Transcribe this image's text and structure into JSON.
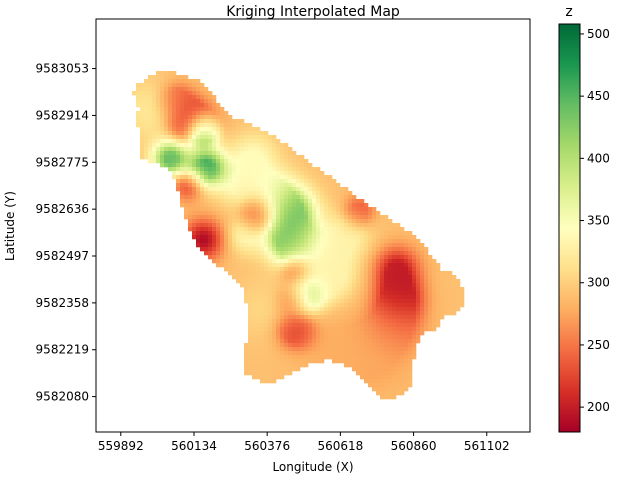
{
  "chart_data": {
    "type": "heatmap",
    "title": "Kriging Interpolated Map",
    "xlabel": "Longitude (X)",
    "ylabel": "Latitude  (Y)",
    "xlim": [
      559810,
      561245
    ],
    "ylim": [
      9581975,
      9583200
    ],
    "xticks": [
      559892,
      560134,
      560376,
      560618,
      560860,
      561102
    ],
    "yticks": [
      9583053,
      9582914,
      9582775,
      9582636,
      9582497,
      9582358,
      9582219,
      9582080
    ],
    "grid": false,
    "colorbar": {
      "label": "z",
      "colormap": "RdYlGn",
      "range": [
        180,
        508
      ],
      "ticks": [
        200,
        250,
        300,
        350,
        400,
        450,
        500
      ]
    },
    "default_value": 290,
    "region_outline": [
      [
        559990,
        9583030
      ],
      [
        560040,
        9583050
      ],
      [
        560150,
        9583020
      ],
      [
        560230,
        9582940
      ],
      [
        560260,
        9582910
      ],
      [
        560330,
        9582885
      ],
      [
        560420,
        9582840
      ],
      [
        560540,
        9582760
      ],
      [
        560620,
        9582710
      ],
      [
        560690,
        9582660
      ],
      [
        560780,
        9582610
      ],
      [
        560870,
        9582555
      ],
      [
        560950,
        9582460
      ],
      [
        561000,
        9582440
      ],
      [
        561025,
        9582390
      ],
      [
        561030,
        9582350
      ],
      [
        561000,
        9582330
      ],
      [
        560960,
        9582315
      ],
      [
        560935,
        9582275
      ],
      [
        560880,
        9582265
      ],
      [
        560860,
        9582180
      ],
      [
        560850,
        9582110
      ],
      [
        560795,
        9582070
      ],
      [
        560750,
        9582080
      ],
      [
        560680,
        9582140
      ],
      [
        560640,
        9582170
      ],
      [
        560580,
        9582190
      ],
      [
        560500,
        9582170
      ],
      [
        560440,
        9582140
      ],
      [
        560390,
        9582120
      ],
      [
        560335,
        9582130
      ],
      [
        560300,
        9582150
      ],
      [
        560305,
        9582220
      ],
      [
        560310,
        9582330
      ],
      [
        560300,
        9582390
      ],
      [
        560270,
        9582430
      ],
      [
        560210,
        9582470
      ],
      [
        560165,
        9582500
      ],
      [
        560130,
        9582550
      ],
      [
        560110,
        9582600
      ],
      [
        560090,
        9582660
      ],
      [
        560075,
        9582720
      ],
      [
        560050,
        9582760
      ],
      [
        559975,
        9582780
      ],
      [
        559950,
        9582800
      ],
      [
        559955,
        9582860
      ],
      [
        559945,
        9582900
      ],
      [
        559950,
        9582940
      ],
      [
        559935,
        9582980
      ],
      [
        559950,
        9583010
      ]
    ],
    "hotspots": [
      {
        "x": 560165,
        "y": 9582870,
        "value": 508,
        "radius": 18
      },
      {
        "x": 560175,
        "y": 9582760,
        "value": 470,
        "radius": 24
      },
      {
        "x": 560055,
        "y": 9582785,
        "value": 450,
        "radius": 22
      },
      {
        "x": 560455,
        "y": 9582630,
        "value": 445,
        "radius": 30
      },
      {
        "x": 560450,
        "y": 9582540,
        "value": 440,
        "radius": 28
      },
      {
        "x": 560505,
        "y": 9582385,
        "value": 415,
        "radius": 22
      },
      {
        "x": 560395,
        "y": 9582690,
        "value": 345,
        "radius": 30
      },
      {
        "x": 560330,
        "y": 9582790,
        "value": 340,
        "radius": 30
      },
      {
        "x": 560285,
        "y": 9582705,
        "value": 335,
        "radius": 28
      },
      {
        "x": 560305,
        "y": 9582560,
        "value": 340,
        "radius": 24
      },
      {
        "x": 560540,
        "y": 9582490,
        "value": 335,
        "radius": 38
      },
      {
        "x": 560590,
        "y": 9582430,
        "value": 330,
        "radius": 30
      },
      {
        "x": 560640,
        "y": 9582560,
        "value": 330,
        "radius": 32
      },
      {
        "x": 559990,
        "y": 9582930,
        "value": 320,
        "radius": 40
      },
      {
        "x": 560360,
        "y": 9582340,
        "value": 305,
        "radius": 40
      },
      {
        "x": 560080,
        "y": 9582960,
        "value": 225,
        "radius": 22
      },
      {
        "x": 560140,
        "y": 9582915,
        "value": 220,
        "radius": 22
      },
      {
        "x": 560100,
        "y": 9582885,
        "value": 215,
        "radius": 20
      },
      {
        "x": 560185,
        "y": 9582885,
        "value": 240,
        "radius": 20
      },
      {
        "x": 560115,
        "y": 9582710,
        "value": 215,
        "radius": 20
      },
      {
        "x": 560165,
        "y": 9582545,
        "value": 188,
        "radius": 26
      },
      {
        "x": 560345,
        "y": 9582620,
        "value": 210,
        "radius": 22
      },
      {
        "x": 560680,
        "y": 9582630,
        "value": 225,
        "radius": 20
      },
      {
        "x": 560470,
        "y": 9582450,
        "value": 215,
        "radius": 18
      },
      {
        "x": 560460,
        "y": 9582370,
        "value": 225,
        "radius": 18
      },
      {
        "x": 560470,
        "y": 9582275,
        "value": 205,
        "radius": 22
      },
      {
        "x": 560805,
        "y": 9582460,
        "value": 200,
        "radius": 28
      },
      {
        "x": 560815,
        "y": 9582375,
        "value": 190,
        "radius": 28
      },
      {
        "x": 560800,
        "y": 9582300,
        "value": 240,
        "radius": 34
      },
      {
        "x": 560605,
        "y": 9582220,
        "value": 280,
        "radius": 50
      },
      {
        "x": 560740,
        "y": 9582200,
        "value": 275,
        "radius": 50
      }
    ]
  }
}
